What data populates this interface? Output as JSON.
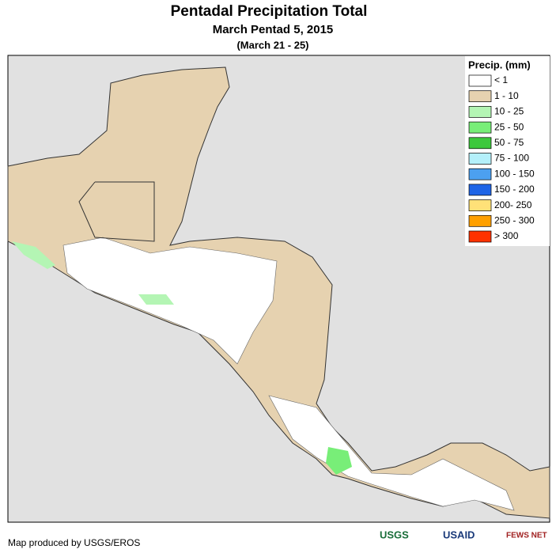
{
  "header": {
    "title": "Pentadal Precipitation Total",
    "subtitle": "March Pentad 5, 2015",
    "dates": "(March 21 - 25)"
  },
  "legend": {
    "title": "Precip. (mm)",
    "items": [
      {
        "label": "< 1",
        "color": "#ffffff"
      },
      {
        "label": "1 - 10",
        "color": "#e6d2b0"
      },
      {
        "label": "10 - 25",
        "color": "#b4f5b4"
      },
      {
        "label": "25 - 50",
        "color": "#78ee78"
      },
      {
        "label": "50 - 75",
        "color": "#3cc83c"
      },
      {
        "label": "75 - 100",
        "color": "#b4f0fa"
      },
      {
        "label": "100 - 150",
        "color": "#4ca0f0"
      },
      {
        "label": "150 - 200",
        "color": "#1e64e6"
      },
      {
        "label": "200- 250",
        "color": "#ffe178"
      },
      {
        "label": "250 - 300",
        "color": "#ffa000"
      },
      {
        "label": "> 300",
        "color": "#ff3200"
      }
    ]
  },
  "footer": {
    "credit": "Map produced by USGS/EROS",
    "logos": [
      "USGS",
      "USAID",
      "FEWS NET"
    ]
  }
}
